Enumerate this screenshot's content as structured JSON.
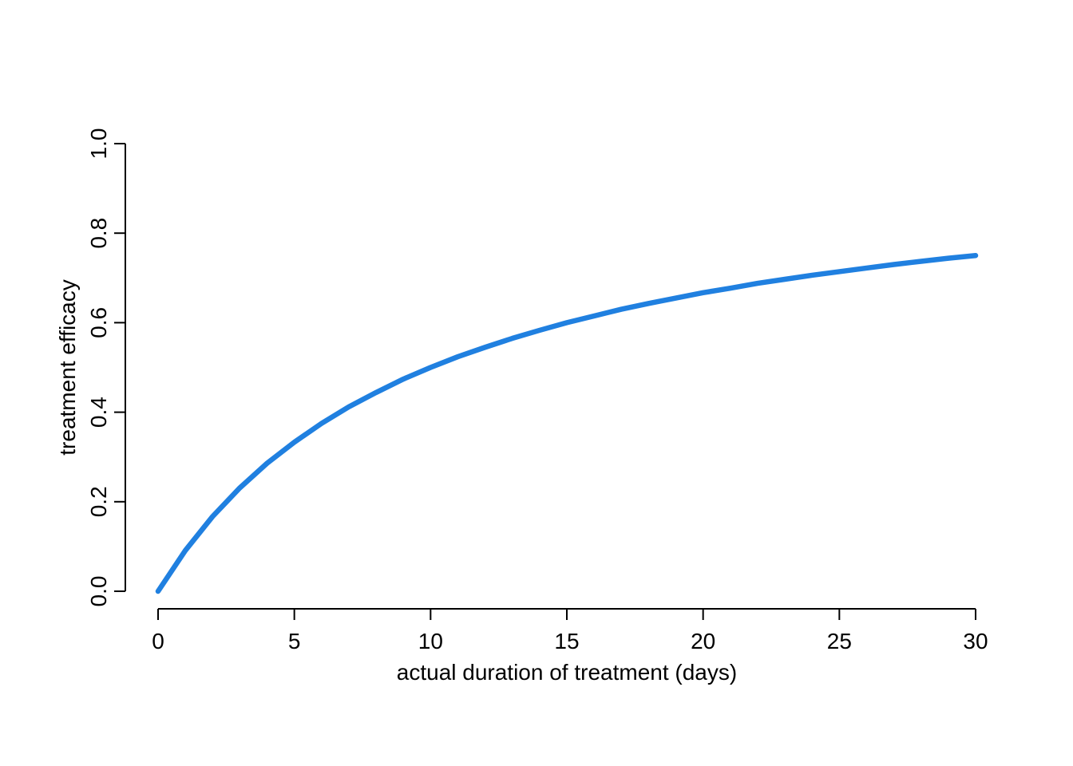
{
  "chart_data": {
    "type": "line",
    "title": "",
    "xlabel": "actual duration of treatment (days)",
    "ylabel": "treatment efficacy",
    "xlim": [
      0,
      30
    ],
    "ylim": [
      0,
      1
    ],
    "x_ticks": [
      0,
      5,
      10,
      15,
      20,
      25,
      30
    ],
    "x_tick_labels": [
      "0",
      "5",
      "10",
      "15",
      "20",
      "25",
      "30"
    ],
    "y_ticks": [
      0,
      0.2,
      0.4,
      0.6,
      0.8,
      1.0
    ],
    "y_tick_labels": [
      "0.0",
      "0.2",
      "0.4",
      "0.6",
      "0.8",
      "1.0"
    ],
    "grid": false,
    "legend": "none",
    "series": [
      {
        "color": "#2080E0",
        "x": [
          0,
          1,
          2,
          3,
          4,
          5,
          6,
          7,
          8,
          9,
          10,
          11,
          12,
          13,
          14,
          15,
          16,
          17,
          18,
          19,
          20,
          21,
          22,
          23,
          24,
          25,
          26,
          27,
          28,
          29,
          30
        ],
        "y": [
          0,
          0.091,
          0.167,
          0.231,
          0.286,
          0.333,
          0.375,
          0.412,
          0.444,
          0.474,
          0.5,
          0.524,
          0.545,
          0.565,
          0.583,
          0.6,
          0.615,
          0.63,
          0.643,
          0.655,
          0.667,
          0.677,
          0.688,
          0.697,
          0.706,
          0.714,
          0.722,
          0.73,
          0.737,
          0.744,
          0.75
        ]
      }
    ]
  }
}
